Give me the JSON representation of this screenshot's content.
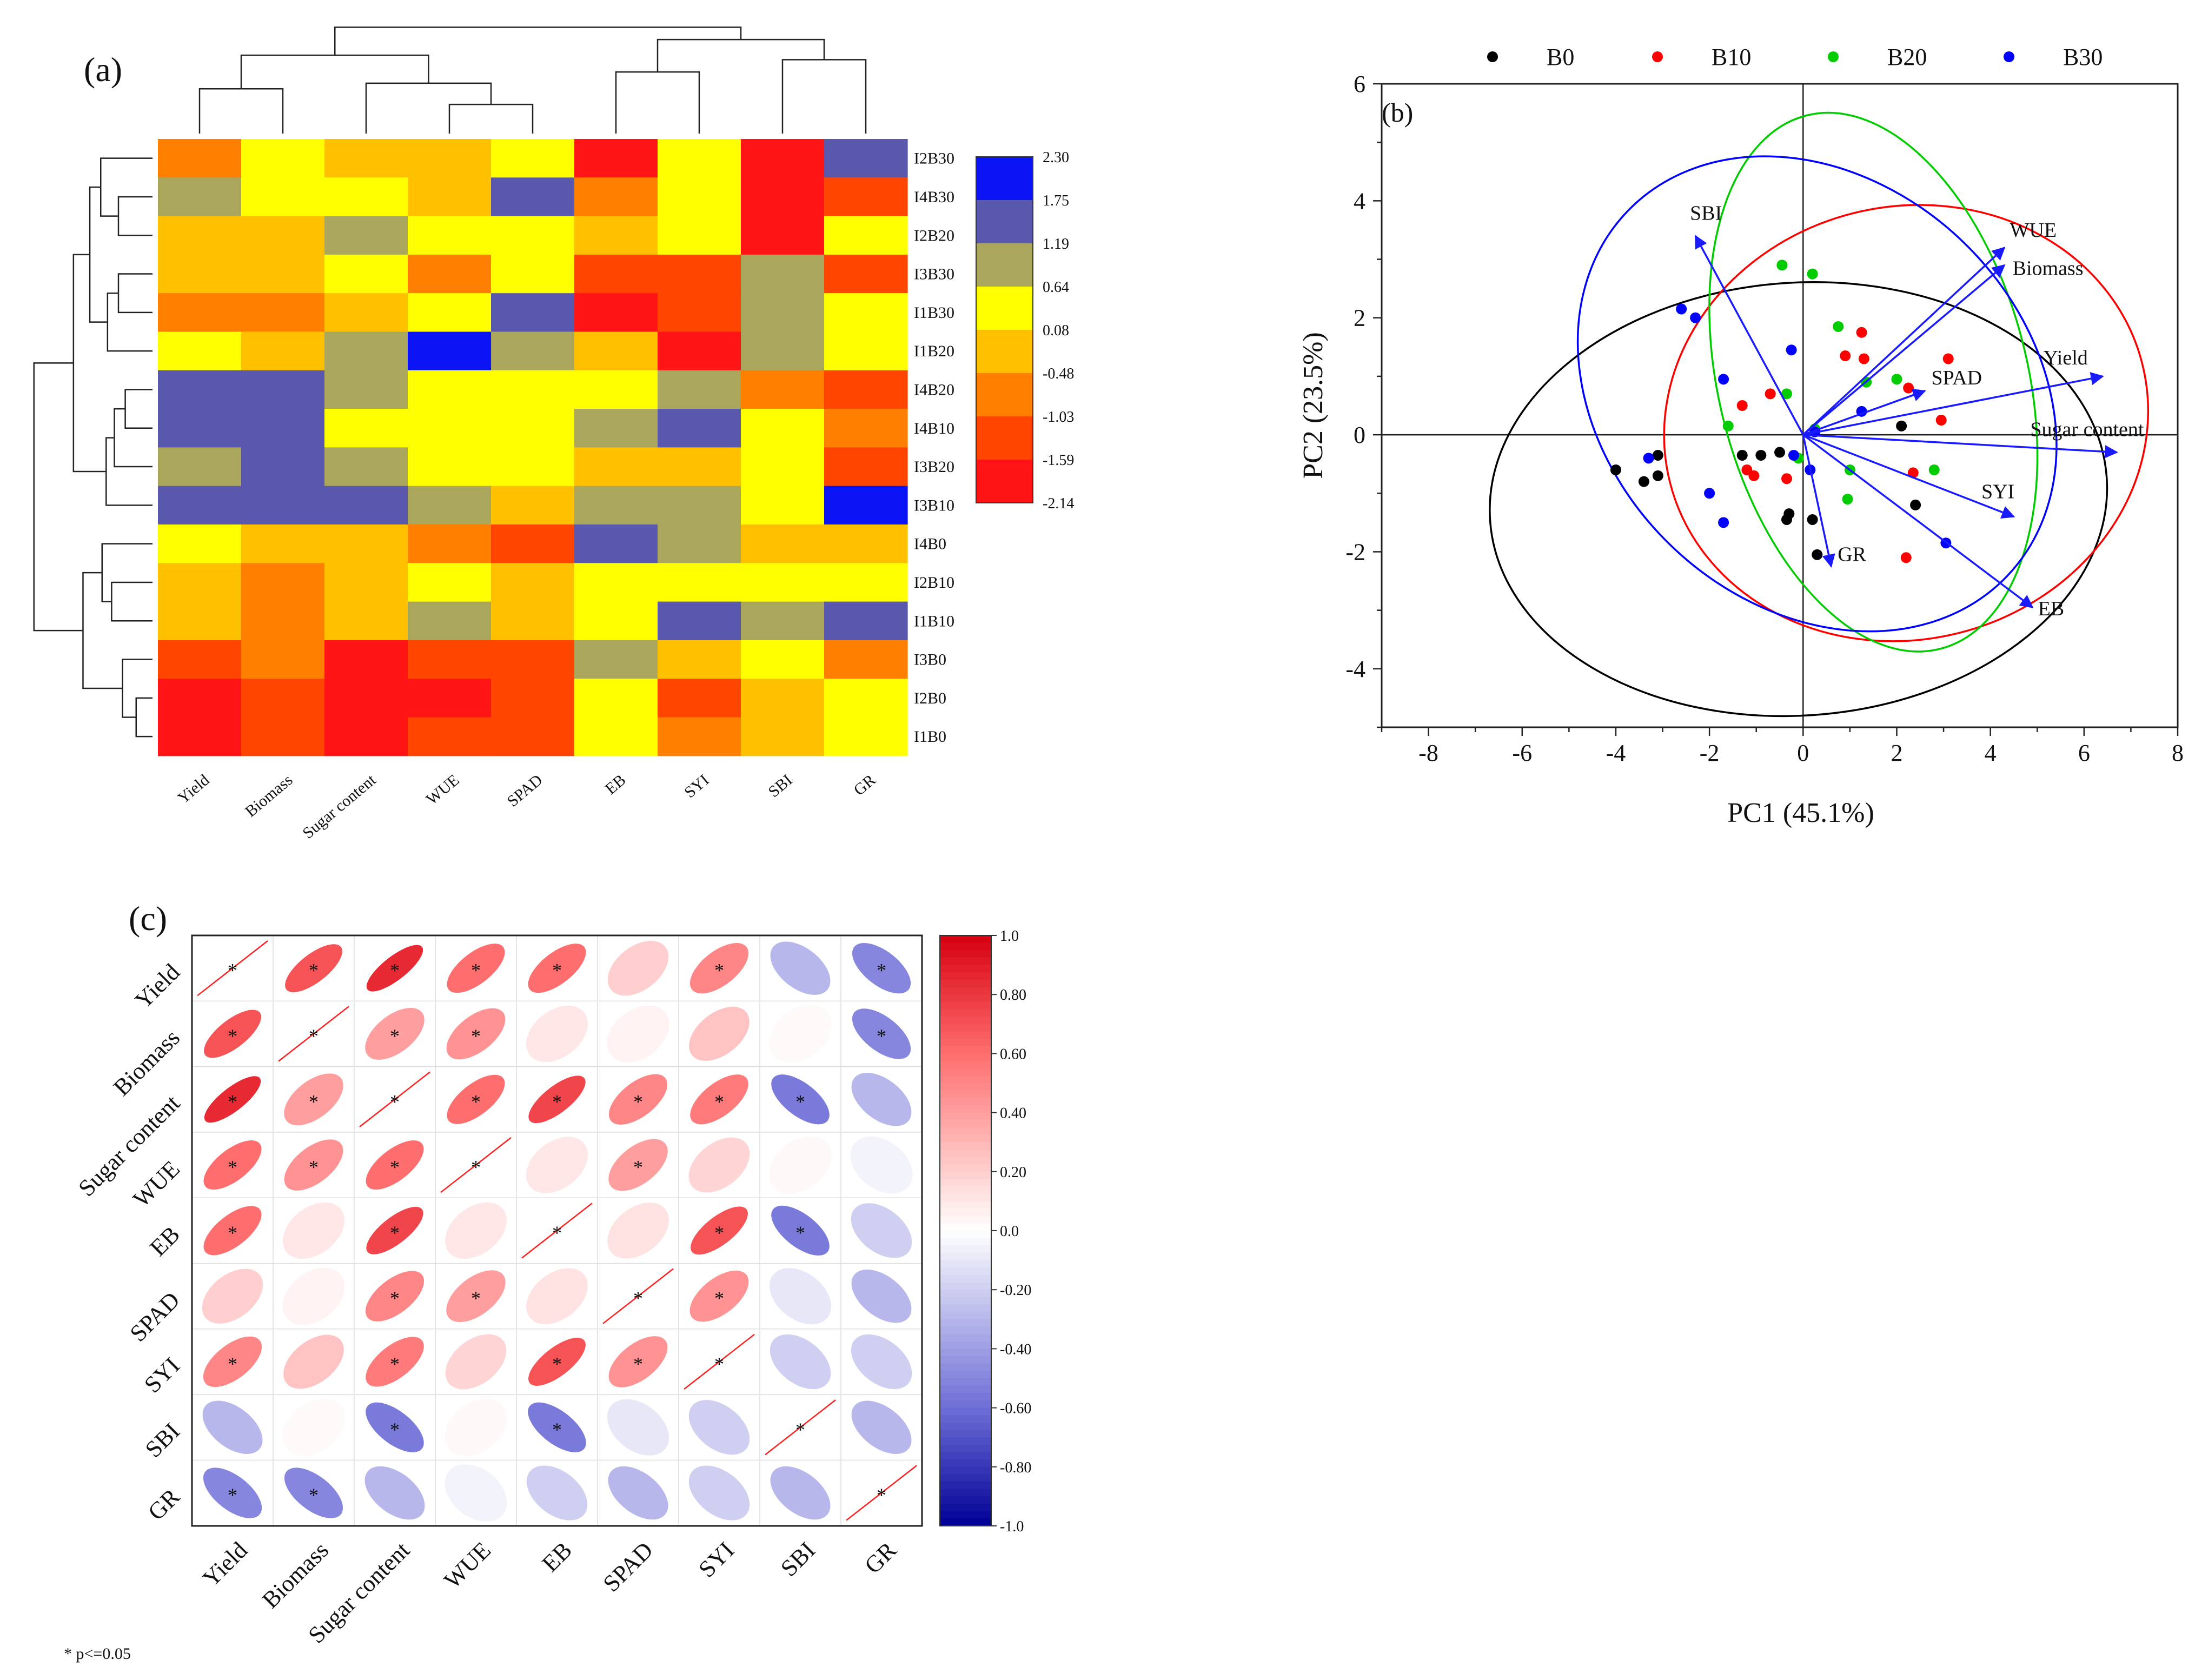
{
  "chart_data": [
    {
      "panel": "(a)",
      "type": "heatmap",
      "title": "",
      "columns": [
        "Yield",
        "Biomass",
        "Sugar content",
        "WUE",
        "SPAD",
        "EB",
        "SYI",
        "SBI",
        "GR"
      ],
      "rows": [
        "I2B30",
        "I4B30",
        "I2B20",
        "I3B30",
        "I1B30",
        "I1B20",
        "I4B20",
        "I4B10",
        "I3B20",
        "I3B10",
        "I4B0",
        "I2B10",
        "I1B10",
        "I3B0",
        "I2B0",
        "I1B0"
      ],
      "values": [
        [
          -1.0,
          0.3,
          -0.2,
          -0.2,
          0.3,
          -1.9,
          0.3,
          -1.8,
          1.5
        ],
        [
          0.9,
          0.3,
          0.3,
          -0.2,
          1.5,
          -0.8,
          0.3,
          -2.0,
          -1.3
        ],
        [
          -0.2,
          -0.2,
          0.9,
          0.3,
          0.3,
          -0.2,
          0.3,
          -2.0,
          0.3
        ],
        [
          -0.2,
          -0.2,
          0.3,
          -0.8,
          0.3,
          -1.3,
          -1.3,
          0.9,
          -1.3
        ],
        [
          -0.8,
          -0.8,
          -0.2,
          0.3,
          1.5,
          -1.9,
          -1.3,
          0.9,
          0.3
        ],
        [
          0.3,
          -0.2,
          0.9,
          2.1,
          0.9,
          -0.2,
          -1.9,
          0.9,
          0.3
        ],
        [
          1.5,
          1.5,
          0.9,
          0.3,
          0.3,
          0.3,
          0.9,
          -0.8,
          -1.3
        ],
        [
          1.5,
          1.5,
          0.3,
          0.3,
          0.3,
          0.9,
          1.5,
          0.3,
          -0.8
        ],
        [
          0.9,
          1.5,
          0.9,
          0.3,
          0.3,
          -0.2,
          -0.2,
          0.3,
          -1.3
        ],
        [
          1.5,
          1.5,
          1.5,
          0.9,
          -0.2,
          0.9,
          0.9,
          0.3,
          2.1
        ],
        [
          0.3,
          -0.2,
          -0.2,
          -0.8,
          -1.3,
          1.5,
          0.9,
          -0.2,
          -0.2
        ],
        [
          -0.2,
          -0.8,
          -0.2,
          0.3,
          -0.2,
          0.3,
          0.3,
          0.3,
          0.3
        ],
        [
          -0.2,
          -0.8,
          -0.2,
          0.9,
          -0.2,
          0.3,
          1.5,
          0.9,
          1.5
        ],
        [
          -1.3,
          -0.8,
          -1.9,
          -1.3,
          -1.3,
          0.9,
          -0.2,
          0.3,
          -0.8
        ],
        [
          -1.9,
          -1.3,
          -1.9,
          -1.9,
          -1.3,
          0.3,
          -1.3,
          -0.2,
          0.3
        ],
        [
          -1.9,
          -1.3,
          -1.9,
          -1.3,
          -1.3,
          0.3,
          -0.8,
          -0.2,
          0.3
        ]
      ],
      "legend": {
        "ticks": [
          "2.30",
          "1.75",
          "1.19",
          "0.64",
          "0.08",
          "-0.48",
          "-1.03",
          "-1.59",
          "-2.14"
        ],
        "bins": [
          2.3,
          1.75,
          1.19,
          0.64,
          0.08,
          -0.48,
          -1.03,
          -1.59,
          -2.14
        ],
        "colors": [
          "#0a14f5",
          "#5a58ac",
          "#aaa65c",
          "#ffff00",
          "#ffc000",
          "#ff7f00",
          "#ff4500",
          "#ff1515"
        ]
      },
      "row_dendrogram": [
        [
          1,
          2,
          0.25
        ],
        [
          0,
          16,
          0.38
        ],
        [
          3,
          4,
          0.25
        ],
        [
          18,
          5,
          0.33
        ],
        [
          17,
          19,
          0.46
        ],
        [
          6,
          7,
          0.2
        ],
        [
          21,
          8,
          0.28
        ],
        [
          22,
          9,
          0.34
        ],
        [
          20,
          23,
          0.58
        ],
        [
          11,
          12,
          0.3
        ],
        [
          10,
          25,
          0.37
        ],
        [
          14,
          15,
          0.12
        ],
        [
          13,
          27,
          0.22
        ],
        [
          26,
          28,
          0.51
        ],
        [
          24,
          29,
          0.87
        ]
      ],
      "col_dendrogram": [
        [
          0,
          1,
          0.4
        ],
        [
          3,
          4,
          0.26
        ],
        [
          2,
          10,
          0.45
        ],
        [
          9,
          11,
          0.7
        ],
        [
          5,
          6,
          0.55
        ],
        [
          7,
          8,
          0.66
        ],
        [
          13,
          14,
          0.84
        ],
        [
          12,
          15,
          0.95
        ]
      ]
    },
    {
      "panel": "(b)",
      "type": "scatter",
      "title": "",
      "xlabel": "PC1 (45.1%)",
      "ylabel": "PC2 (23.5%)",
      "xlim": [
        -9,
        8
      ],
      "ylim": [
        -5,
        6
      ],
      "xticks": [
        -8,
        -6,
        -4,
        -2,
        0,
        2,
        4,
        6,
        8
      ],
      "yticks": [
        -4,
        -2,
        0,
        2,
        4,
        6
      ],
      "series": [
        {
          "name": "B0",
          "color": "#000000",
          "points": [
            [
              -4.0,
              -0.6
            ],
            [
              -3.4,
              -0.8
            ],
            [
              -3.1,
              -0.7
            ],
            [
              -3.1,
              -0.35
            ],
            [
              -1.3,
              -0.35
            ],
            [
              -0.9,
              -0.35
            ],
            [
              -0.5,
              -0.3
            ],
            [
              -0.35,
              -1.45
            ],
            [
              -0.3,
              -1.35
            ],
            [
              0.2,
              -1.45
            ],
            [
              0.3,
              -2.05
            ],
            [
              2.1,
              0.15
            ],
            [
              2.4,
              -1.2
            ]
          ],
          "ellipse": {
            "cx": -0.1,
            "cy": -1.1,
            "rx": 6.6,
            "ry": 3.7,
            "angle": -4
          }
        },
        {
          "name": "B10",
          "color": "#ff0000",
          "points": [
            [
              -1.3,
              0.5
            ],
            [
              -1.2,
              -0.6
            ],
            [
              -1.05,
              -0.7
            ],
            [
              -0.7,
              0.7
            ],
            [
              -0.35,
              -0.75
            ],
            [
              0.9,
              1.35
            ],
            [
              1.25,
              1.75
            ],
            [
              1.3,
              1.3
            ],
            [
              2.25,
              0.8
            ],
            [
              2.35,
              -0.65
            ],
            [
              3.1,
              1.3
            ],
            [
              2.95,
              0.25
            ],
            [
              2.2,
              -2.1
            ]
          ],
          "ellipse": {
            "cx": 2.2,
            "cy": 0.2,
            "rx": 5.2,
            "ry": 3.7,
            "angle": -14
          }
        },
        {
          "name": "B20",
          "color": "#00cc00",
          "points": [
            [
              -1.6,
              0.15
            ],
            [
              -0.45,
              2.9
            ],
            [
              -0.35,
              0.7
            ],
            [
              0.2,
              2.75
            ],
            [
              0.75,
              1.85
            ],
            [
              0.95,
              -1.1
            ],
            [
              1.0,
              -0.6
            ],
            [
              1.35,
              0.9
            ],
            [
              2.0,
              0.95
            ],
            [
              2.8,
              -0.6
            ],
            [
              0.25,
              0.1
            ],
            [
              -0.1,
              -0.4
            ]
          ],
          "ellipse": {
            "cx": 1.5,
            "cy": 0.9,
            "rx": 3.3,
            "ry": 4.7,
            "angle": -14
          }
        },
        {
          "name": "B30",
          "color": "#0000ff",
          "points": [
            [
              -3.3,
              -0.4
            ],
            [
              -2.6,
              2.15
            ],
            [
              -2.3,
              2.0
            ],
            [
              -2.0,
              -1.0
            ],
            [
              -1.7,
              0.95
            ],
            [
              -1.7,
              -1.5
            ],
            [
              -0.25,
              1.45
            ],
            [
              -0.2,
              -0.35
            ],
            [
              0.15,
              -0.6
            ],
            [
              1.25,
              0.4
            ],
            [
              3.05,
              -1.85
            ],
            [
              0.25,
              0.05
            ]
          ],
          "ellipse": {
            "cx": 0.3,
            "cy": 0.7,
            "rx": 4.5,
            "ry": 4.5,
            "angle": -46
          }
        }
      ],
      "loadings": [
        {
          "label": "SBI",
          "x": -2.3,
          "y": 3.4
        },
        {
          "label": "WUE",
          "x": 4.3,
          "y": 3.2
        },
        {
          "label": "Biomass",
          "x": 4.3,
          "y": 2.9
        },
        {
          "label": "SPAD",
          "x": 2.6,
          "y": 0.75
        },
        {
          "label": "Yield",
          "x": 6.4,
          "y": 1.0
        },
        {
          "label": "Sugar content",
          "x": 6.7,
          "y": -0.3
        },
        {
          "label": "SYI",
          "x": 4.5,
          "y": -1.4
        },
        {
          "label": "GR",
          "x": 0.6,
          "y": -2.25
        },
        {
          "label": "EB",
          "x": 4.9,
          "y": -2.95
        }
      ]
    },
    {
      "panel": "(c)",
      "type": "heatmap",
      "title": "",
      "variables": [
        "Yield",
        "Biomass",
        "Sugar content",
        "WUE",
        "EB",
        "SPAD",
        "SYI",
        "SBI",
        "GR"
      ],
      "matrix": [
        [
          1.0,
          0.7,
          0.85,
          0.6,
          0.6,
          0.2,
          0.5,
          -0.3,
          -0.5
        ],
        [
          0.7,
          1.0,
          0.4,
          0.45,
          0.1,
          0.05,
          0.25,
          0.02,
          -0.5
        ],
        [
          0.85,
          0.4,
          1.0,
          0.6,
          0.75,
          0.5,
          0.55,
          -0.55,
          -0.3
        ],
        [
          0.6,
          0.45,
          0.6,
          1.0,
          0.1,
          0.4,
          0.18,
          0.03,
          -0.05
        ],
        [
          0.6,
          0.1,
          0.75,
          0.1,
          1.0,
          0.12,
          0.7,
          -0.55,
          -0.2
        ],
        [
          0.2,
          0.05,
          0.5,
          0.4,
          0.12,
          1.0,
          0.45,
          -0.1,
          -0.3
        ],
        [
          0.5,
          0.25,
          0.55,
          0.18,
          0.7,
          0.45,
          1.0,
          -0.2,
          -0.2
        ],
        [
          -0.3,
          0.02,
          -0.55,
          0.03,
          -0.55,
          -0.1,
          -0.2,
          1.0,
          -0.3
        ],
        [
          -0.5,
          -0.5,
          -0.3,
          -0.05,
          -0.2,
          -0.3,
          -0.2,
          -0.3,
          1.0
        ]
      ],
      "significant": [
        [
          1,
          1,
          1,
          1,
          1,
          0,
          1,
          0,
          1
        ],
        [
          1,
          1,
          1,
          1,
          0,
          0,
          0,
          0,
          1
        ],
        [
          1,
          1,
          1,
          1,
          1,
          1,
          1,
          1,
          0
        ],
        [
          1,
          1,
          1,
          1,
          0,
          1,
          0,
          0,
          0
        ],
        [
          1,
          0,
          1,
          0,
          1,
          0,
          1,
          1,
          0
        ],
        [
          0,
          0,
          1,
          1,
          0,
          1,
          1,
          0,
          0
        ],
        [
          1,
          0,
          1,
          0,
          1,
          1,
          1,
          0,
          0
        ],
        [
          0,
          0,
          1,
          0,
          1,
          0,
          0,
          1,
          0
        ],
        [
          1,
          1,
          0,
          0,
          0,
          0,
          0,
          0,
          1
        ]
      ],
      "star": "*",
      "legend": {
        "ticks": [
          "1.0",
          "0.80",
          "0.60",
          "0.40",
          "0.20",
          "0.0",
          "-0.20",
          "-0.40",
          "-0.60",
          "-0.80",
          "-1.0"
        ],
        "range": [
          -1,
          1
        ]
      },
      "note": "* p<=0.05"
    }
  ]
}
